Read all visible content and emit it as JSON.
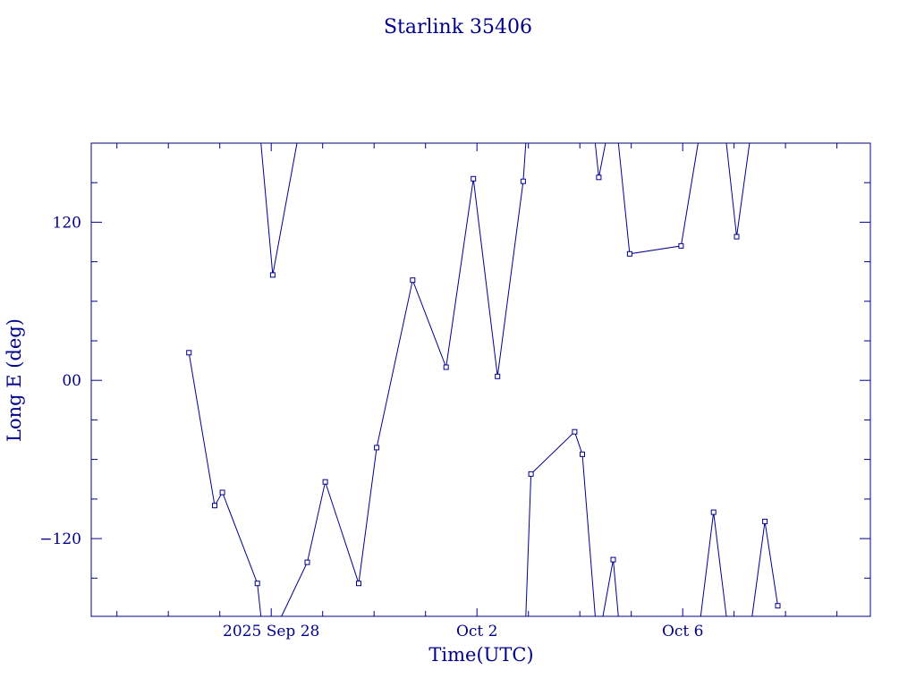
{
  "chart_data": {
    "type": "line",
    "title": "Starlink 35406",
    "xlabel": "Time(UTC)",
    "ylabel": "Long E (deg)",
    "x_ticks_labeled": [
      {
        "label": "2025 Sep 28",
        "day": 28.0
      },
      {
        "label": "Oct  2",
        "day": 32.0
      },
      {
        "label": "Oct  6",
        "day": 36.0
      }
    ],
    "y_ticks_labeled": [
      {
        "label": "120",
        "value": 120
      },
      {
        "label": "00",
        "value": 0
      },
      {
        "label": "−120",
        "value": -120
      }
    ],
    "xlim_days": [
      24.5,
      39.65
    ],
    "ylim": [
      -179,
      180
    ],
    "color": "#00008b",
    "series": [
      {
        "points": [
          {
            "day": 26.4,
            "lon": 21
          },
          {
            "day": 26.9,
            "lon": -95
          },
          {
            "day": 27.05,
            "lon": -85
          },
          {
            "day": 27.73,
            "lon": -154
          },
          {
            "day": 27.8,
            "lon": -179
          }
        ]
      },
      {
        "points": [
          {
            "day": 27.8,
            "lon": 180
          },
          {
            "day": 28.03,
            "lon": 80
          },
          {
            "day": 28.5,
            "lon": 180
          }
        ]
      },
      {
        "points": [
          {
            "day": 28.2,
            "lon": -179
          },
          {
            "day": 28.7,
            "lon": -138
          },
          {
            "day": 29.05,
            "lon": -77
          },
          {
            "day": 29.7,
            "lon": -154
          },
          {
            "day": 30.05,
            "lon": -51
          },
          {
            "day": 30.75,
            "lon": 76
          },
          {
            "day": 31.4,
            "lon": 10
          },
          {
            "day": 31.93,
            "lon": 153
          },
          {
            "day": 32.4,
            "lon": 3
          },
          {
            "day": 32.9,
            "lon": 151
          },
          {
            "day": 32.95,
            "lon": 180
          }
        ]
      },
      {
        "points": [
          {
            "day": 32.95,
            "lon": -179
          },
          {
            "day": 33.05,
            "lon": -71
          },
          {
            "day": 33.9,
            "lon": -39
          },
          {
            "day": 34.05,
            "lon": -56
          },
          {
            "day": 34.3,
            "lon": -179
          }
        ]
      },
      {
        "points": [
          {
            "day": 34.3,
            "lon": 180
          },
          {
            "day": 34.37,
            "lon": 154
          },
          {
            "day": 34.5,
            "lon": 180
          }
        ]
      },
      {
        "points": [
          {
            "day": 34.45,
            "lon": -179
          },
          {
            "day": 34.65,
            "lon": -136
          },
          {
            "day": 34.75,
            "lon": -179
          }
        ]
      },
      {
        "points": [
          {
            "day": 34.75,
            "lon": 180
          },
          {
            "day": 34.97,
            "lon": 96
          },
          {
            "day": 35.97,
            "lon": 102
          },
          {
            "day": 36.3,
            "lon": 180
          }
        ]
      },
      {
        "points": [
          {
            "day": 36.35,
            "lon": -179
          },
          {
            "day": 36.6,
            "lon": -100
          },
          {
            "day": 36.85,
            "lon": -179
          }
        ]
      },
      {
        "points": [
          {
            "day": 36.85,
            "lon": 180
          },
          {
            "day": 37.05,
            "lon": 109
          },
          {
            "day": 37.3,
            "lon": 180
          }
        ]
      },
      {
        "points": [
          {
            "day": 37.35,
            "lon": -179
          },
          {
            "day": 37.6,
            "lon": -107
          },
          {
            "day": 37.85,
            "lon": -171
          }
        ]
      }
    ]
  }
}
